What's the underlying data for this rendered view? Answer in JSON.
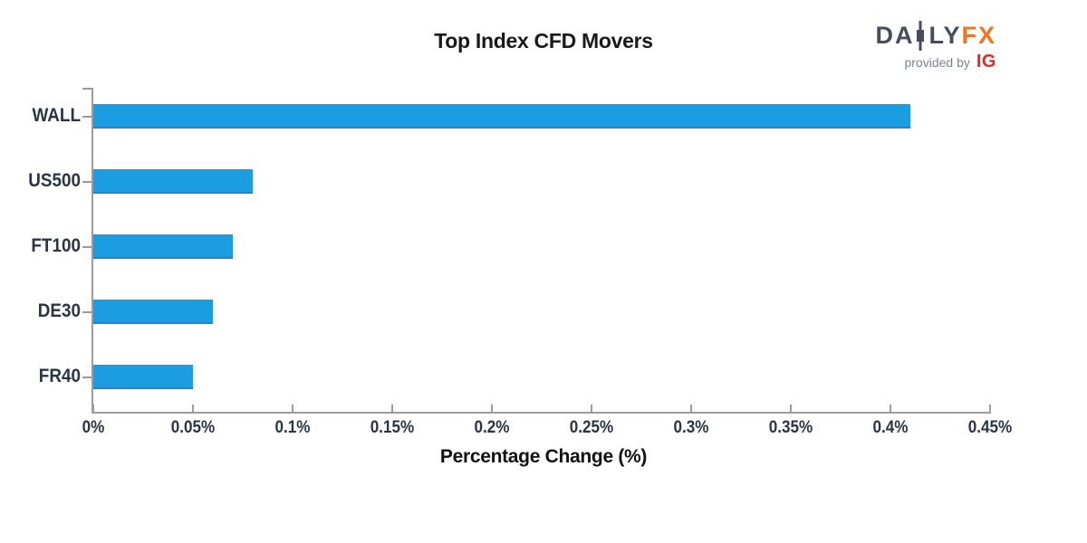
{
  "header": {
    "title": "Top Index CFD Movers"
  },
  "logo": {
    "daily_left": "DA",
    "daily_right": "LY",
    "fx": "FX",
    "provided_by": "provided by",
    "ig": "IG",
    "colors": {
      "slate": "#454e59",
      "orange": "#f4731f",
      "gray": "#7d848c",
      "red": "#e8271e"
    }
  },
  "chart_data": {
    "type": "bar",
    "orientation": "horizontal",
    "title": "Top Index CFD Movers",
    "xlabel": "Percentage Change (%)",
    "categories": [
      "WALL",
      "US500",
      "FT100",
      "DE30",
      "FR40"
    ],
    "values": [
      0.41,
      0.08,
      0.07,
      0.06,
      0.05
    ],
    "value_unit": "%",
    "xlim": [
      0,
      0.45
    ],
    "x_tick_values": [
      0,
      0.05,
      0.1,
      0.15,
      0.2,
      0.25,
      0.3,
      0.35,
      0.4,
      0.45
    ],
    "x_tick_labels": [
      "0%",
      "0.05%",
      "0.1%",
      "0.15%",
      "0.2%",
      "0.25%",
      "0.3%",
      "0.35%",
      "0.4%",
      "0.45%"
    ],
    "grid": false,
    "legend": false,
    "bar_color": "#1b9de2",
    "axis_color": "#9c9c9c",
    "tick_label_color": "#2a3545",
    "title_color": "#1a1a1a"
  }
}
